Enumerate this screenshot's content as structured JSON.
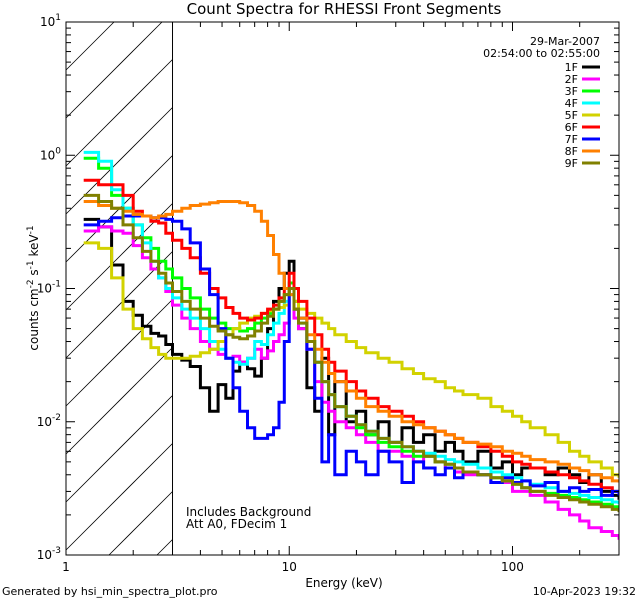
{
  "chart_data": {
    "type": "line",
    "title": "Count Spectra for RHESSI Front Segments",
    "xlabel": "Energy (keV)",
    "ylabel": "counts cm",
    "ylabel_exp1": "-2",
    "ylabel_mid": " s",
    "ylabel_exp2": "-1",
    "ylabel_end": " keV",
    "ylabel_exp3": "-1",
    "xscale": "log",
    "yscale": "log",
    "xlim": [
      1,
      300
    ],
    "ylim": [
      0.001,
      10
    ],
    "x_ticks": [
      {
        "value": 1,
        "label": "1"
      },
      {
        "value": 10,
        "label": "10"
      },
      {
        "value": 100,
        "label": "100"
      }
    ],
    "y_ticks": [
      {
        "value": 0.001,
        "base": "10",
        "exp": "-3"
      },
      {
        "value": 0.01,
        "base": "10",
        "exp": "-2"
      },
      {
        "value": 0.1,
        "base": "10",
        "exp": "-1"
      },
      {
        "value": 1,
        "base": "10",
        "exp": "0"
      },
      {
        "value": 10,
        "base": "10",
        "exp": "1"
      }
    ],
    "hatched_region_max_kev": 3,
    "date": "29-Mar-2007",
    "time_range": "02:54:00 to 02:55:00",
    "annotation_lines": [
      "Includes Background",
      "Att A0, FDecim 1"
    ],
    "legend_position": "top-right",
    "series": [
      {
        "name": "1F",
        "color": "#000000",
        "x": [
          1.2,
          1.4,
          1.6,
          1.8,
          2.0,
          2.2,
          2.4,
          2.6,
          2.8,
          3.0,
          3.3,
          3.6,
          4.0,
          4.4,
          4.8,
          5.2,
          5.6,
          6.0,
          6.5,
          7.0,
          7.5,
          8.0,
          8.5,
          9.0,
          9.5,
          10,
          10.5,
          11,
          12,
          13,
          14,
          15,
          16,
          18,
          20,
          22,
          25,
          28,
          32,
          36,
          40,
          45,
          50,
          55,
          60,
          70,
          80,
          90,
          100,
          110,
          120,
          140,
          160,
          180,
          200,
          220,
          250,
          280,
          300
        ],
        "y": [
          0.33,
          0.29,
          0.15,
          0.08,
          0.063,
          0.052,
          0.046,
          0.044,
          0.038,
          0.032,
          0.029,
          0.026,
          0.018,
          0.012,
          0.019,
          0.015,
          0.024,
          0.028,
          0.025,
          0.022,
          0.03,
          0.05,
          0.08,
          0.1,
          0.13,
          0.16,
          0.07,
          0.05,
          0.018,
          0.012,
          0.03,
          0.008,
          0.02,
          0.01,
          0.012,
          0.008,
          0.01,
          0.007,
          0.009,
          0.007,
          0.008,
          0.006,
          0.007,
          0.006,
          0.005,
          0.006,
          0.0045,
          0.005,
          0.004,
          0.0045,
          0.0045,
          0.004,
          0.0045,
          0.004,
          0.0035,
          0.004,
          0.003,
          0.0028,
          0.0026
        ]
      },
      {
        "name": "2F",
        "color": "#ff00ff",
        "x": [
          1.2,
          1.4,
          1.6,
          1.8,
          2.0,
          2.2,
          2.4,
          2.6,
          2.8,
          3.0,
          3.3,
          3.6,
          4.0,
          4.4,
          4.8,
          5.2,
          5.6,
          6.0,
          6.5,
          7.0,
          7.5,
          8.0,
          8.5,
          9.0,
          9.5,
          10,
          10.5,
          11,
          12,
          13,
          14,
          15,
          16,
          18,
          20,
          22,
          25,
          28,
          32,
          36,
          40,
          45,
          50,
          55,
          60,
          70,
          80,
          90,
          100,
          110,
          120,
          140,
          160,
          180,
          200,
          220,
          250,
          280,
          300
        ],
        "y": [
          0.27,
          0.29,
          0.27,
          0.26,
          0.21,
          0.17,
          0.14,
          0.12,
          0.095,
          0.075,
          0.06,
          0.05,
          0.04,
          0.035,
          0.032,
          0.03,
          0.031,
          0.028,
          0.03,
          0.035,
          0.03,
          0.034,
          0.04,
          0.045,
          0.055,
          0.09,
          0.06,
          0.05,
          0.035,
          0.02,
          0.014,
          0.012,
          0.01,
          0.009,
          0.008,
          0.007,
          0.006,
          0.006,
          0.0055,
          0.005,
          0.0055,
          0.005,
          0.0045,
          0.0042,
          0.004,
          0.004,
          0.0035,
          0.0035,
          0.003,
          0.003,
          0.0028,
          0.0025,
          0.0022,
          0.002,
          0.0018,
          0.0016,
          0.0015,
          0.0014,
          0.0013
        ]
      },
      {
        "name": "3F",
        "color": "#00ff00",
        "x": [
          1.2,
          1.4,
          1.6,
          1.8,
          2.0,
          2.2,
          2.4,
          2.6,
          2.8,
          3.0,
          3.3,
          3.6,
          4.0,
          4.4,
          4.8,
          5.2,
          5.6,
          6.0,
          6.5,
          7.0,
          7.5,
          8.0,
          8.5,
          9.0,
          9.5,
          10,
          10.5,
          11,
          12,
          13,
          14,
          15,
          16,
          18,
          20,
          22,
          25,
          28,
          32,
          36,
          40,
          45,
          50,
          55,
          60,
          70,
          80,
          90,
          100,
          110,
          120,
          140,
          160,
          180,
          200,
          220,
          250,
          280,
          300
        ],
        "y": [
          0.95,
          0.8,
          0.5,
          0.4,
          0.3,
          0.24,
          0.2,
          0.16,
          0.14,
          0.12,
          0.1,
          0.085,
          0.07,
          0.06,
          0.055,
          0.05,
          0.05,
          0.048,
          0.05,
          0.055,
          0.06,
          0.065,
          0.07,
          0.08,
          0.09,
          0.11,
          0.08,
          0.06,
          0.04,
          0.028,
          0.02,
          0.016,
          0.013,
          0.011,
          0.009,
          0.008,
          0.007,
          0.0065,
          0.006,
          0.0055,
          0.0055,
          0.005,
          0.0048,
          0.0045,
          0.0042,
          0.004,
          0.0038,
          0.0036,
          0.0034,
          0.0032,
          0.003,
          0.0029,
          0.0028,
          0.0027,
          0.0026,
          0.0025,
          0.0024,
          0.0023,
          0.0022
        ]
      },
      {
        "name": "4F",
        "color": "#00ffff",
        "x": [
          1.2,
          1.4,
          1.6,
          1.8,
          2.0,
          2.2,
          2.4,
          2.6,
          2.8,
          3.0,
          3.3,
          3.6,
          4.0,
          4.4,
          4.8,
          5.2,
          5.6,
          6.0,
          6.5,
          7.0,
          7.5,
          8.0,
          8.5,
          9.0,
          9.5,
          10,
          10.5,
          11,
          12,
          13,
          14,
          15,
          16,
          18,
          20,
          22,
          25,
          28,
          32,
          36,
          40,
          45,
          50,
          55,
          60,
          70,
          80,
          90,
          100,
          110,
          120,
          140,
          160,
          180,
          200,
          220,
          250,
          280,
          300
        ],
        "y": [
          1.05,
          0.9,
          0.55,
          0.4,
          0.3,
          0.22,
          0.16,
          0.12,
          0.1,
          0.085,
          0.07,
          0.06,
          0.05,
          0.04,
          0.035,
          0.03,
          0.028,
          0.027,
          0.03,
          0.04,
          0.038,
          0.045,
          0.055,
          0.065,
          0.08,
          0.1,
          0.07,
          0.055,
          0.04,
          0.028,
          0.02,
          0.016,
          0.013,
          0.011,
          0.0095,
          0.0085,
          0.0075,
          0.007,
          0.0065,
          0.006,
          0.0058,
          0.0055,
          0.0052,
          0.005,
          0.0048,
          0.0045,
          0.0042,
          0.004,
          0.0038,
          0.0036,
          0.0034,
          0.0032,
          0.003,
          0.0029,
          0.0028,
          0.0027,
          0.0026,
          0.0025,
          0.0024
        ]
      },
      {
        "name": "5F",
        "color": "#d2d200",
        "x": [
          1.2,
          1.4,
          1.6,
          1.8,
          2.0,
          2.2,
          2.4,
          2.6,
          2.8,
          3.0,
          3.3,
          3.6,
          4.0,
          4.4,
          4.8,
          5.2,
          5.6,
          6.0,
          6.5,
          7.0,
          7.5,
          8.0,
          8.5,
          9.0,
          9.5,
          10,
          10.5,
          11,
          12,
          13,
          14,
          15,
          16,
          18,
          20,
          22,
          25,
          28,
          32,
          36,
          40,
          45,
          50,
          55,
          60,
          70,
          80,
          90,
          100,
          110,
          120,
          140,
          160,
          180,
          200,
          220,
          250,
          280,
          300
        ],
        "y": [
          0.22,
          0.2,
          0.12,
          0.07,
          0.05,
          0.042,
          0.036,
          0.032,
          0.03,
          0.03,
          0.03,
          0.031,
          0.033,
          0.035,
          0.04,
          0.045,
          0.05,
          0.055,
          0.06,
          0.062,
          0.065,
          0.068,
          0.07,
          0.072,
          0.075,
          0.1,
          0.08,
          0.07,
          0.065,
          0.06,
          0.055,
          0.05,
          0.045,
          0.04,
          0.036,
          0.033,
          0.03,
          0.028,
          0.025,
          0.023,
          0.021,
          0.02,
          0.018,
          0.017,
          0.016,
          0.015,
          0.013,
          0.012,
          0.011,
          0.01,
          0.009,
          0.008,
          0.007,
          0.006,
          0.0055,
          0.005,
          0.0045,
          0.004,
          0.0038
        ]
      },
      {
        "name": "6F",
        "color": "#ff0000",
        "x": [
          1.2,
          1.4,
          1.6,
          1.8,
          2.0,
          2.2,
          2.4,
          2.6,
          2.8,
          3.0,
          3.3,
          3.6,
          4.0,
          4.4,
          4.8,
          5.2,
          5.6,
          6.0,
          6.5,
          7.0,
          7.5,
          8.0,
          8.5,
          9.0,
          9.5,
          10,
          10.5,
          11,
          12,
          13,
          14,
          15,
          16,
          18,
          20,
          22,
          25,
          28,
          32,
          36,
          40,
          45,
          50,
          55,
          60,
          70,
          80,
          90,
          100,
          110,
          120,
          140,
          160,
          180,
          200,
          220,
          250,
          280,
          300
        ],
        "y": [
          0.65,
          0.6,
          0.6,
          0.5,
          0.38,
          0.35,
          0.32,
          0.31,
          0.26,
          0.23,
          0.2,
          0.17,
          0.13,
          0.1,
          0.085,
          0.072,
          0.065,
          0.06,
          0.058,
          0.06,
          0.065,
          0.07,
          0.075,
          0.085,
          0.1,
          0.13,
          0.1,
          0.08,
          0.06,
          0.045,
          0.035,
          0.028,
          0.024,
          0.02,
          0.017,
          0.015,
          0.013,
          0.012,
          0.011,
          0.01,
          0.009,
          0.0085,
          0.008,
          0.0075,
          0.007,
          0.0065,
          0.006,
          0.0055,
          0.005,
          0.0048,
          0.0045,
          0.0042,
          0.004,
          0.0038,
          0.0036,
          0.0034,
          0.0032,
          0.003,
          0.0029
        ]
      },
      {
        "name": "7F",
        "color": "#0000ff",
        "x": [
          1.2,
          1.4,
          1.6,
          1.8,
          2.0,
          2.2,
          2.4,
          2.6,
          2.8,
          3.0,
          3.3,
          3.6,
          4.0,
          4.4,
          4.8,
          5.2,
          5.6,
          6.0,
          6.5,
          7.0,
          7.5,
          8.0,
          8.5,
          9.0,
          9.5,
          10,
          10.5,
          11,
          12,
          13,
          14,
          15,
          16,
          18,
          20,
          22,
          25,
          28,
          32,
          36,
          40,
          45,
          50,
          55,
          60,
          70,
          80,
          90,
          100,
          110,
          120,
          140,
          160,
          180,
          200,
          220,
          250,
          280,
          300
        ],
        "y": [
          0.3,
          0.32,
          0.34,
          0.35,
          0.35,
          0.35,
          0.34,
          0.34,
          0.33,
          0.32,
          0.28,
          0.22,
          0.14,
          0.09,
          0.05,
          0.03,
          0.018,
          0.012,
          0.009,
          0.0075,
          0.0075,
          0.008,
          0.009,
          0.014,
          0.04,
          0.1,
          0.07,
          0.06,
          0.035,
          0.015,
          0.005,
          0.008,
          0.004,
          0.006,
          0.005,
          0.004,
          0.006,
          0.005,
          0.0035,
          0.005,
          0.0045,
          0.004,
          0.0045,
          0.0038,
          0.0042,
          0.004,
          0.0035,
          0.0038,
          0.0035,
          0.0036,
          0.0033,
          0.0035,
          0.003,
          0.0032,
          0.003,
          0.0031,
          0.0028,
          0.003,
          0.0028
        ]
      },
      {
        "name": "8F",
        "color": "#ff8000",
        "x": [
          1.2,
          1.4,
          1.6,
          1.8,
          2.0,
          2.2,
          2.4,
          2.6,
          2.8,
          3.0,
          3.3,
          3.6,
          4.0,
          4.4,
          4.8,
          5.2,
          5.6,
          6.0,
          6.5,
          7.0,
          7.5,
          8.0,
          8.5,
          9.0,
          9.5,
          10,
          10.5,
          11,
          12,
          13,
          14,
          15,
          16,
          18,
          20,
          22,
          25,
          28,
          32,
          36,
          40,
          45,
          50,
          55,
          60,
          70,
          80,
          90,
          100,
          110,
          120,
          140,
          160,
          180,
          200,
          220,
          250,
          280,
          300
        ],
        "y": [
          0.45,
          0.42,
          0.4,
          0.38,
          0.36,
          0.35,
          0.34,
          0.35,
          0.36,
          0.38,
          0.4,
          0.42,
          0.43,
          0.44,
          0.45,
          0.45,
          0.45,
          0.44,
          0.42,
          0.38,
          0.32,
          0.25,
          0.18,
          0.13,
          0.1,
          0.09,
          0.07,
          0.06,
          0.045,
          0.035,
          0.028,
          0.023,
          0.02,
          0.017,
          0.015,
          0.013,
          0.012,
          0.011,
          0.01,
          0.0095,
          0.009,
          0.0085,
          0.008,
          0.0075,
          0.007,
          0.0068,
          0.0065,
          0.006,
          0.0058,
          0.0055,
          0.0052,
          0.005,
          0.0048,
          0.0045,
          0.0043,
          0.004,
          0.0038,
          0.0036,
          0.0035
        ]
      },
      {
        "name": "9F",
        "color": "#808000",
        "x": [
          1.2,
          1.4,
          1.6,
          1.8,
          2.0,
          2.2,
          2.4,
          2.6,
          2.8,
          3.0,
          3.3,
          3.6,
          4.0,
          4.4,
          4.8,
          5.2,
          5.6,
          6.0,
          6.5,
          7.0,
          7.5,
          8.0,
          8.5,
          9.0,
          9.5,
          10,
          10.5,
          11,
          12,
          13,
          14,
          15,
          16,
          18,
          20,
          22,
          25,
          28,
          32,
          36,
          40,
          45,
          50,
          55,
          60,
          70,
          80,
          90,
          100,
          110,
          120,
          140,
          160,
          180,
          200,
          220,
          250,
          280,
          300
        ],
        "y": [
          0.5,
          0.45,
          0.4,
          0.3,
          0.24,
          0.19,
          0.16,
          0.13,
          0.11,
          0.095,
          0.08,
          0.07,
          0.06,
          0.052,
          0.048,
          0.045,
          0.043,
          0.042,
          0.044,
          0.048,
          0.055,
          0.062,
          0.07,
          0.08,
          0.09,
          0.1,
          0.07,
          0.055,
          0.04,
          0.028,
          0.02,
          0.016,
          0.013,
          0.011,
          0.0095,
          0.0085,
          0.0075,
          0.007,
          0.0065,
          0.006,
          0.0055,
          0.005,
          0.0048,
          0.0045,
          0.0042,
          0.004,
          0.0038,
          0.0036,
          0.0034,
          0.0032,
          0.003,
          0.0028,
          0.0027,
          0.0026,
          0.0025,
          0.0024,
          0.0023,
          0.0022,
          0.0021
        ]
      }
    ]
  },
  "footer": {
    "left": "Generated by hsi_min_spectra_plot.pro",
    "right": "10-Apr-2023 19:32"
  }
}
